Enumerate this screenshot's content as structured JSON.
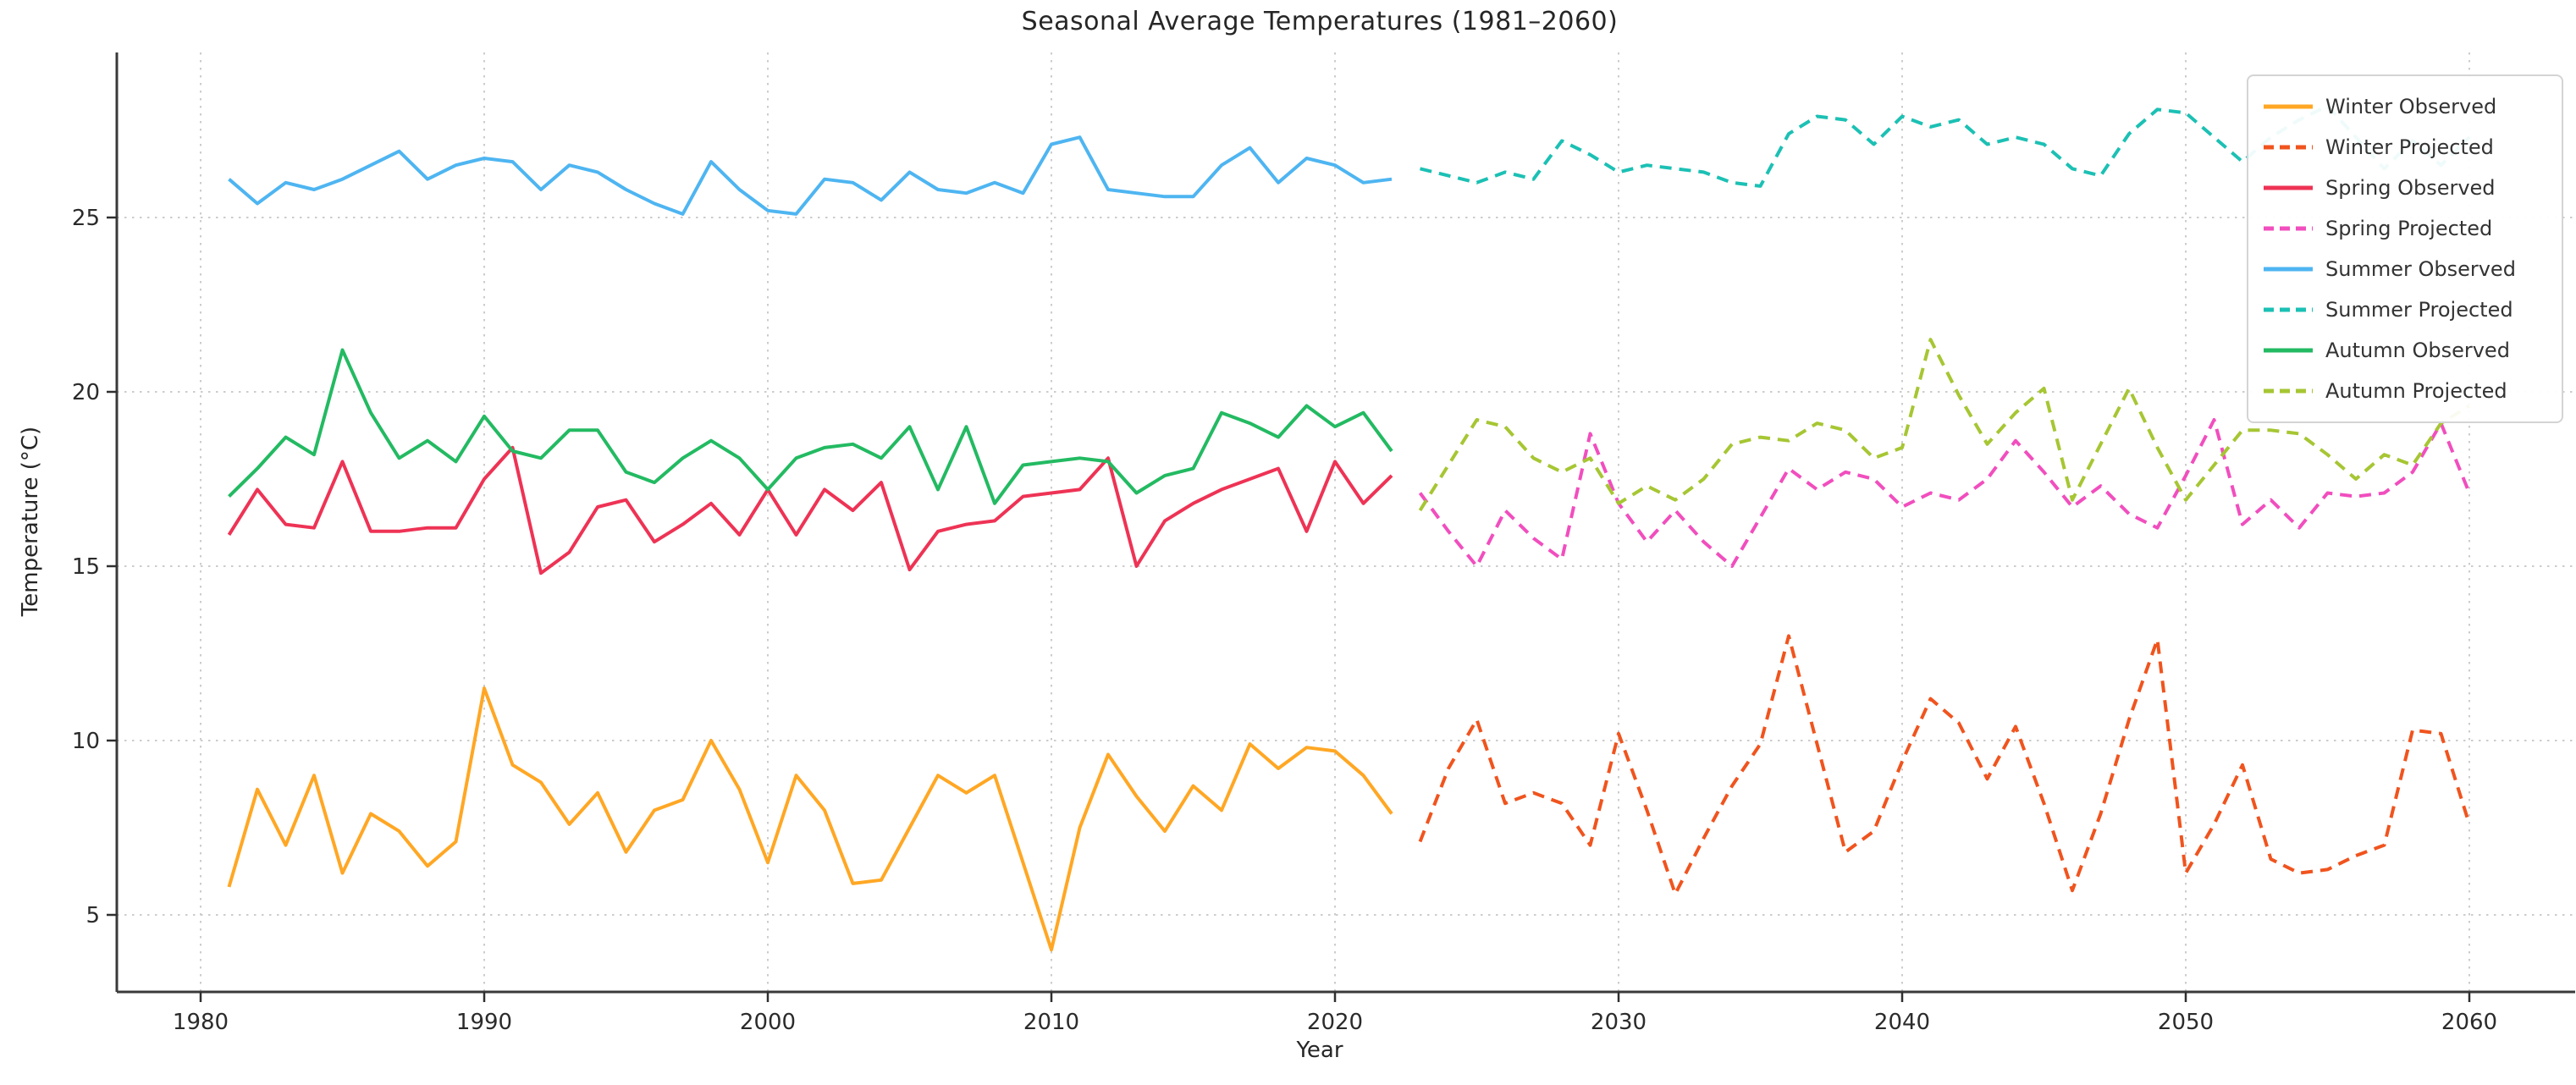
{
  "chart_data": {
    "type": "line",
    "title": "Seasonal Average Temperatures (1981–2060)",
    "xlabel": "Year",
    "ylabel": "Temperature (°C)",
    "x_ticks": [
      "1980",
      "1990",
      "2000",
      "2010",
      "2020",
      "2030",
      "2040",
      "2050",
      "2060"
    ],
    "x_tick_values": [
      1980,
      1990,
      2000,
      2010,
      2020,
      2030,
      2040,
      2050,
      2060
    ],
    "y_ticks": [
      "5",
      "10",
      "15",
      "20",
      "25"
    ],
    "y_tick_values": [
      5,
      10,
      15,
      20,
      25
    ],
    "xlim": [
      1977.1,
      2063.9
    ],
    "ylim": [
      2.8,
      29.8
    ],
    "grid": true,
    "grid_style": "dotted",
    "legend_position": "upper right",
    "series": [
      {
        "name": "Winter Observed",
        "style": "solid",
        "color": "#FFA724",
        "x_start": 1981,
        "values": [
          5.8,
          8.6,
          7.0,
          9.0,
          6.2,
          7.9,
          7.4,
          6.4,
          7.1,
          11.5,
          9.3,
          8.8,
          7.6,
          8.5,
          6.8,
          8.0,
          8.3,
          10.0,
          8.6,
          6.5,
          9.0,
          8.0,
          5.9,
          6.0,
          7.5,
          9.0,
          8.5,
          9.0,
          6.5,
          4.0,
          7.5,
          9.6,
          8.4,
          7.4,
          8.7,
          8.0,
          9.9,
          9.2,
          9.8,
          9.7,
          9.0,
          7.9
        ]
      },
      {
        "name": "Winter Projected",
        "style": "dashed",
        "color": "#F0541E",
        "x_start": 2023,
        "values": [
          7.1,
          9.2,
          10.6,
          8.2,
          8.5,
          8.2,
          7.0,
          10.2,
          8.0,
          5.6,
          7.2,
          8.7,
          9.9,
          13.0,
          9.9,
          6.8,
          7.4,
          9.4,
          11.2,
          10.5,
          8.9,
          10.4,
          8.2,
          5.7,
          7.9,
          10.6,
          12.9,
          6.2,
          7.6,
          9.3,
          6.6,
          6.2,
          6.3,
          6.7,
          7.0,
          10.3,
          10.2,
          7.6
        ]
      },
      {
        "name": "Spring Observed",
        "style": "solid",
        "color": "#EE3355",
        "x_start": 1981,
        "values": [
          15.9,
          17.2,
          16.2,
          16.1,
          18.0,
          16.0,
          16.0,
          16.1,
          16.1,
          17.5,
          18.4,
          14.8,
          15.4,
          16.7,
          16.9,
          15.7,
          16.2,
          16.8,
          15.9,
          17.2,
          15.9,
          17.2,
          16.6,
          17.4,
          14.9,
          16.0,
          16.2,
          16.3,
          17.0,
          17.1,
          17.2,
          18.1,
          15.0,
          16.3,
          16.8,
          17.2,
          17.5,
          17.8,
          16.0,
          18.0,
          16.8,
          17.6
        ]
      },
      {
        "name": "Spring Projected",
        "style": "dashed",
        "color": "#F14EBE",
        "x_start": 2023,
        "values": [
          17.1,
          16.0,
          15.0,
          16.6,
          15.8,
          15.2,
          18.8,
          16.8,
          15.7,
          16.6,
          15.7,
          15.0,
          16.4,
          17.8,
          17.2,
          17.7,
          17.5,
          16.7,
          17.1,
          16.9,
          17.5,
          18.6,
          17.7,
          16.7,
          17.3,
          16.5,
          16.1,
          17.6,
          19.2,
          16.2,
          16.9,
          16.1,
          17.1,
          17.0,
          17.1,
          17.7,
          19.1,
          17.1
        ]
      },
      {
        "name": "Summer Observed",
        "style": "solid",
        "color": "#4EB5F1",
        "x_start": 1981,
        "values": [
          26.1,
          25.4,
          26.0,
          25.8,
          26.1,
          26.5,
          26.9,
          26.1,
          26.5,
          26.7,
          26.6,
          25.8,
          26.5,
          26.3,
          25.8,
          25.4,
          25.1,
          26.6,
          25.8,
          25.2,
          25.1,
          26.1,
          26.0,
          25.5,
          26.3,
          25.8,
          25.7,
          26.0,
          25.7,
          27.1,
          27.3,
          25.8,
          25.7,
          25.6,
          25.6,
          26.5,
          27.0,
          26.0,
          26.7,
          26.5,
          26.0,
          26.1
        ]
      },
      {
        "name": "Summer Projected",
        "style": "dashed",
        "color": "#1CC0B4",
        "x_start": 2023,
        "values": [
          26.4,
          26.2,
          26.0,
          26.3,
          26.1,
          27.2,
          26.8,
          26.3,
          26.5,
          26.4,
          26.3,
          26.0,
          25.9,
          27.4,
          27.9,
          27.8,
          27.1,
          27.9,
          27.6,
          27.8,
          27.1,
          27.3,
          27.1,
          26.4,
          26.2,
          27.4,
          28.1,
          28.0,
          27.3,
          26.6,
          27.3,
          27.8,
          28.2,
          27.3,
          26.4,
          27.2,
          26.5,
          27.3
        ]
      },
      {
        "name": "Autumn Observed",
        "style": "solid",
        "color": "#23BA62",
        "x_start": 1981,
        "values": [
          17.0,
          17.8,
          18.7,
          18.2,
          21.2,
          19.4,
          18.1,
          18.6,
          18.0,
          19.3,
          18.3,
          18.1,
          18.9,
          18.9,
          17.7,
          17.4,
          18.1,
          18.6,
          18.1,
          17.2,
          18.1,
          18.4,
          18.5,
          18.1,
          19.0,
          17.2,
          19.0,
          16.8,
          17.9,
          18.0,
          18.1,
          18.0,
          17.1,
          17.6,
          17.8,
          19.4,
          19.1,
          18.7,
          19.6,
          19.0,
          19.4,
          18.3
        ]
      },
      {
        "name": "Autumn Projected",
        "style": "dashed",
        "color": "#A6C633",
        "x_start": 2023,
        "values": [
          16.6,
          17.9,
          19.2,
          19.0,
          18.1,
          17.7,
          18.1,
          16.8,
          17.3,
          16.9,
          17.5,
          18.5,
          18.7,
          18.6,
          19.1,
          18.9,
          18.1,
          18.4,
          21.5,
          19.9,
          18.5,
          19.4,
          20.1,
          16.9,
          18.5,
          20.1,
          18.4,
          16.9,
          17.9,
          18.9,
          18.9,
          18.8,
          18.2,
          17.5,
          18.2,
          17.9,
          19.1,
          19.6
        ]
      }
    ]
  }
}
